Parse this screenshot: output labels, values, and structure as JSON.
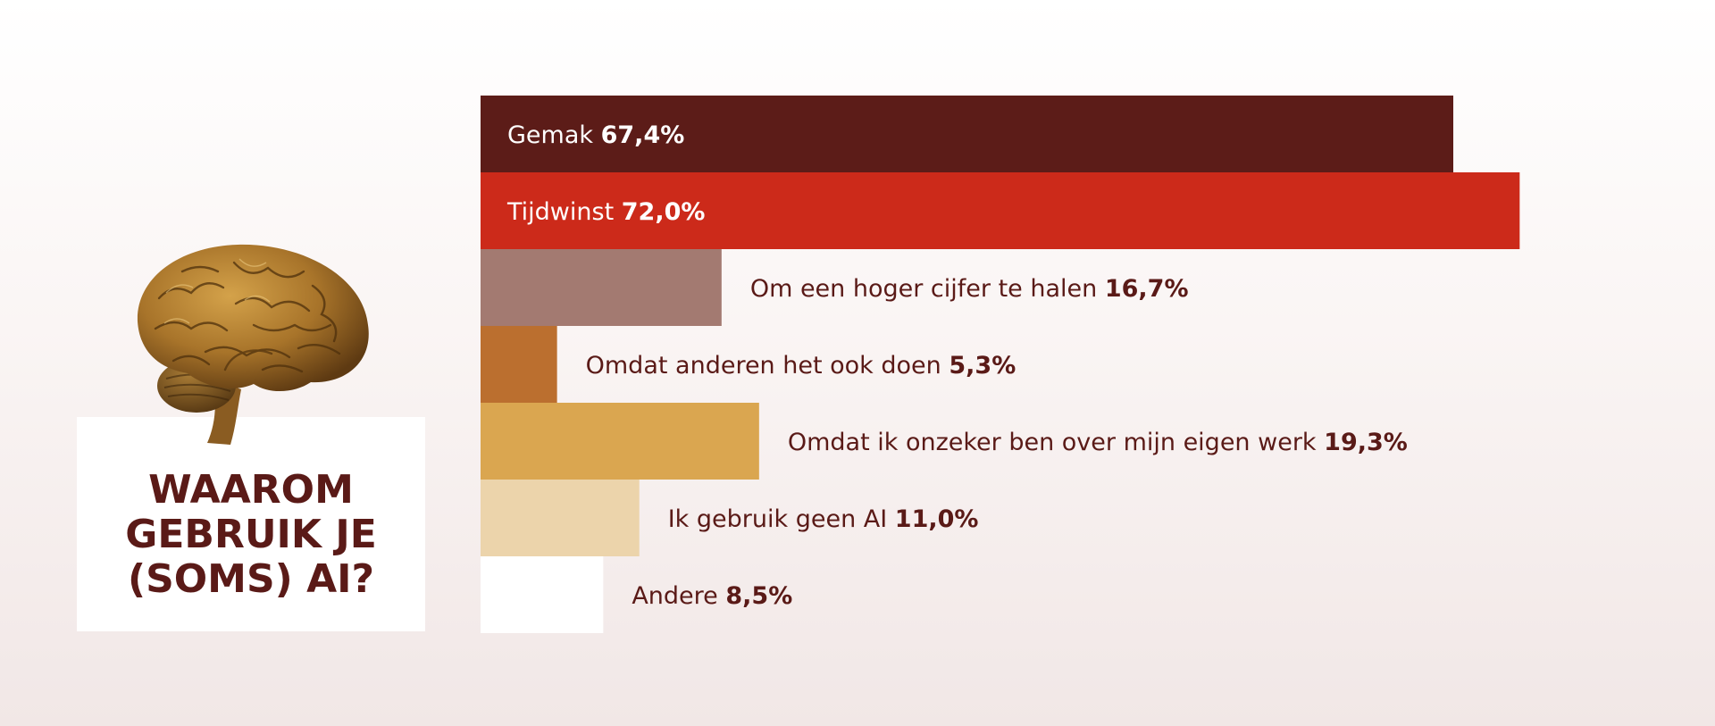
{
  "title": "WAAROM\nGEBRUIK JE\n(SOMS) AI?",
  "icons": {
    "illustration": "brain-illustration"
  },
  "colors": {
    "text_dark": "#5a1a17",
    "text_light": "#ffffff"
  },
  "chart_data": {
    "type": "bar",
    "orientation": "horizontal",
    "xlim": [
      0,
      100
    ],
    "bars": [
      {
        "label": "Gemak",
        "value": 67.4,
        "value_text": "67,4%",
        "color": "#5c1c18",
        "label_inside": true
      },
      {
        "label": "Tijdwinst",
        "value": 72.0,
        "value_text": "72,0%",
        "color": "#cc2a1a",
        "label_inside": true
      },
      {
        "label": "Om een hoger cijfer te halen",
        "value": 16.7,
        "value_text": "16,7%",
        "color": "#a37a71",
        "label_inside": false
      },
      {
        "label": "Omdat anderen het ook doen",
        "value": 5.3,
        "value_text": "5,3%",
        "color": "#bb6f2f",
        "label_inside": false
      },
      {
        "label": "Omdat ik onzeker ben over mijn eigen werk",
        "value": 19.3,
        "value_text": "19,3%",
        "color": "#daa650",
        "label_inside": false
      },
      {
        "label": "Ik gebruik geen AI",
        "value": 11.0,
        "value_text": "11,0%",
        "color": "#ecd4ab",
        "label_inside": false
      },
      {
        "label": "Andere",
        "value": 8.5,
        "value_text": "8,5%",
        "color": "#ffffff",
        "label_inside": false
      }
    ]
  }
}
